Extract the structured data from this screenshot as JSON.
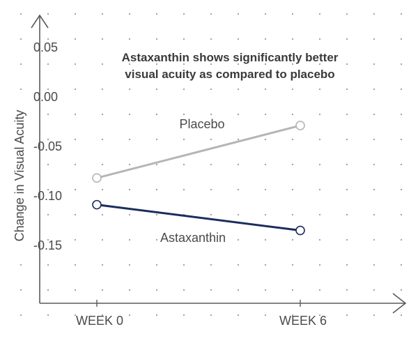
{
  "chart_data": {
    "type": "line",
    "title_lines": [
      "Astaxanthin shows significantly better",
      "visual acuity as compared to placebo"
    ],
    "xlabel": "",
    "ylabel": "Change in Visual Acuity",
    "categories": [
      "WEEK 0",
      "WEEK 6"
    ],
    "y_ticks": [
      "0.05",
      "0.00",
      "-0.05",
      "-0.10",
      "-0.15"
    ],
    "y_tick_values": [
      0.05,
      0.0,
      -0.05,
      -0.1,
      -0.15
    ],
    "ylim": [
      -0.22,
      0.07
    ],
    "grid": "dotted",
    "series": [
      {
        "name": "Placebo",
        "values": [
          -0.084,
          -0.031
        ],
        "color": "#b5b5b5"
      },
      {
        "name": "Astaxanthin",
        "values": [
          -0.111,
          -0.137
        ],
        "color": "#1b2d5e"
      }
    ],
    "colors": {
      "axis": "#5a5a5a",
      "grid_dot": "#9a9a9a",
      "text": "#4a4a4a"
    }
  }
}
